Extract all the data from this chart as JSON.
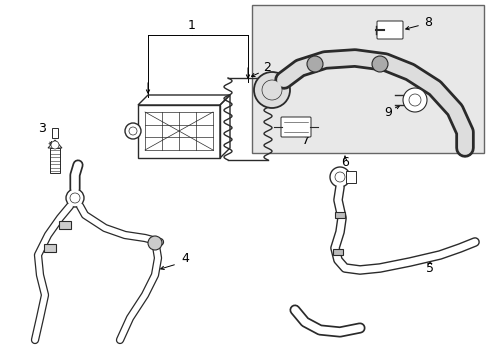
{
  "bg_color": "#ffffff",
  "line_color": "#2a2a2a",
  "inset_bg": "#e8e8e8",
  "inset_border": "#666666",
  "fig_width": 4.89,
  "fig_height": 3.6,
  "dpi": 100,
  "font_size": 9,
  "arrow_lw": 0.7,
  "part_lw": 1.0,
  "hose_lw_outer": 3.5,
  "hose_lw_inner": 2.2
}
